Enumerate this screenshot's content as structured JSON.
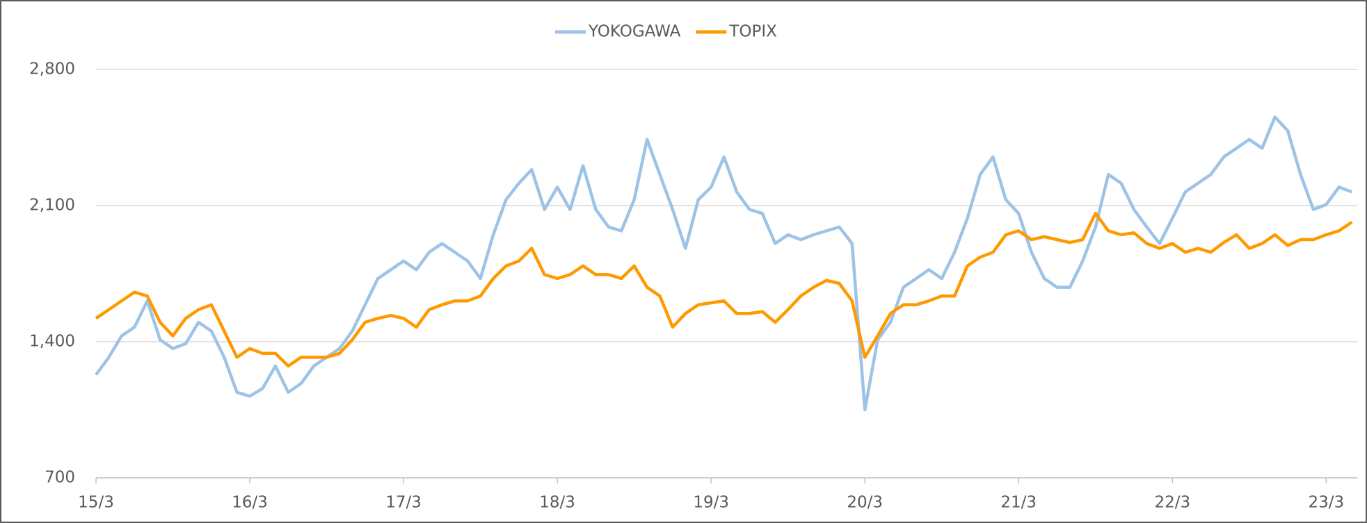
{
  "chart_data": {
    "type": "line",
    "categories": [
      "15/3",
      null,
      null,
      null,
      null,
      null,
      null,
      null,
      null,
      null,
      null,
      null,
      "16/3",
      null,
      null,
      null,
      null,
      null,
      null,
      null,
      null,
      null,
      null,
      null,
      "17/3",
      null,
      null,
      null,
      null,
      null,
      null,
      null,
      null,
      null,
      null,
      null,
      "18/3",
      null,
      null,
      null,
      null,
      null,
      null,
      null,
      null,
      null,
      null,
      null,
      "19/3",
      null,
      null,
      null,
      null,
      null,
      null,
      null,
      null,
      null,
      null,
      null,
      "20/3",
      null,
      null,
      null,
      null,
      null,
      null,
      null,
      null,
      null,
      null,
      null,
      "21/3",
      null,
      null,
      null,
      null,
      null,
      null,
      null,
      null,
      null,
      null,
      null,
      "22/3",
      null,
      null,
      null,
      null,
      null,
      null,
      null,
      null,
      null,
      null,
      null,
      "23/3",
      null,
      null
    ],
    "series": [
      {
        "name": "YOKOGAWA",
        "color": "#9dc3e6",
        "values": [
          1230,
          1320,
          1430,
          1475,
          1610,
          1410,
          1365,
          1390,
          1500,
          1455,
          1320,
          1140,
          1120,
          1160,
          1275,
          1140,
          1185,
          1275,
          1320,
          1365,
          1455,
          1590,
          1725,
          1770,
          1815,
          1770,
          1860,
          1905,
          1860,
          1815,
          1725,
          1950,
          2130,
          2215,
          2285,
          2080,
          2195,
          2080,
          2305,
          2080,
          1990,
          1970,
          2130,
          2440,
          2260,
          2080,
          1880,
          2130,
          2195,
          2350,
          2170,
          2080,
          2060,
          1905,
          1950,
          1925,
          1950,
          1970,
          1990,
          1905,
          1050,
          1410,
          1500,
          1680,
          1725,
          1770,
          1725,
          1860,
          2035,
          2260,
          2350,
          2130,
          2060,
          1860,
          1725,
          1680,
          1680,
          1815,
          1990,
          2260,
          2215,
          2080,
          1990,
          1905,
          2035,
          2170,
          2215,
          2260,
          2350,
          2395,
          2440,
          2395,
          2555,
          2485,
          2260,
          2080,
          2105,
          2195,
          2170
        ]
      },
      {
        "name": "TOPIX",
        "color": "#ff9900",
        "values": [
          1520,
          1565,
          1610,
          1655,
          1635,
          1500,
          1430,
          1520,
          1565,
          1590,
          1455,
          1320,
          1365,
          1340,
          1340,
          1275,
          1320,
          1320,
          1320,
          1340,
          1410,
          1500,
          1520,
          1535,
          1520,
          1475,
          1565,
          1590,
          1610,
          1610,
          1635,
          1725,
          1790,
          1815,
          1880,
          1745,
          1725,
          1745,
          1790,
          1745,
          1745,
          1725,
          1790,
          1680,
          1635,
          1475,
          1545,
          1590,
          1600,
          1610,
          1545,
          1545,
          1555,
          1500,
          1565,
          1635,
          1680,
          1715,
          1700,
          1610,
          1320,
          1430,
          1545,
          1590,
          1590,
          1610,
          1635,
          1635,
          1790,
          1835,
          1860,
          1950,
          1970,
          1925,
          1940,
          1925,
          1910,
          1925,
          2060,
          1970,
          1950,
          1960,
          1905,
          1880,
          1905,
          1860,
          1880,
          1860,
          1910,
          1950,
          1880,
          1905,
          1950,
          1895,
          1925,
          1925,
          1950,
          1970,
          2015
        ]
      }
    ],
    "ylim": [
      700,
      2800
    ],
    "yticks": [
      700,
      {
        "value": 1400,
        "label": "1,400"
      },
      {
        "value": 2100,
        "label": "2,100"
      },
      {
        "value": 2800,
        "label": "2,800"
      }
    ],
    "grid": true,
    "legend": "top"
  }
}
